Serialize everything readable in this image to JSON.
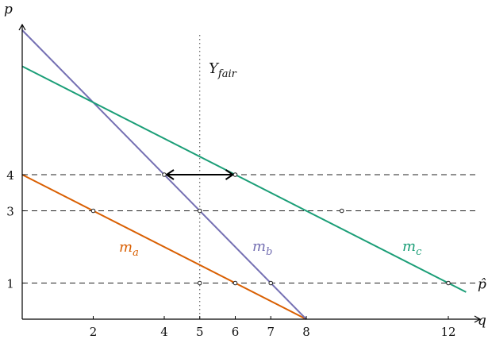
{
  "chart_data": {
    "type": "line",
    "title": "",
    "xlabel": "q",
    "ylabel": "p",
    "xlim": [
      0,
      13
    ],
    "ylim": [
      0,
      8.2
    ],
    "grid": false,
    "x_ticks": [
      2,
      4,
      5,
      6,
      7,
      8,
      12
    ],
    "y_ticks": [
      1,
      3,
      4
    ],
    "series": [
      {
        "name": "m_a",
        "label_main": "m",
        "label_sub": "a",
        "color": "#d95f02",
        "points": [
          [
            0,
            4
          ],
          [
            8,
            0
          ]
        ]
      },
      {
        "name": "m_b",
        "label_main": "m",
        "label_sub": "b",
        "color": "#7570b3",
        "points": [
          [
            0,
            8
          ],
          [
            8,
            0
          ]
        ]
      },
      {
        "name": "m_c",
        "label_main": "m",
        "label_sub": "c",
        "color": "#1b9e77",
        "points": [
          [
            0,
            7
          ],
          [
            12.5,
            0.75
          ]
        ]
      }
    ],
    "hlines": [
      {
        "y": 4,
        "label": ""
      },
      {
        "y": 3,
        "label": ""
      },
      {
        "y": 1,
        "label": "p̂"
      }
    ],
    "vline": {
      "x": 5,
      "label_main": "Y",
      "label_sub": "fair"
    },
    "markers": [
      [
        2,
        3
      ],
      [
        5,
        3
      ],
      [
        9,
        3
      ],
      [
        4,
        4
      ],
      [
        6,
        4
      ],
      [
        5,
        1
      ],
      [
        6,
        1
      ],
      [
        7,
        1
      ],
      [
        12,
        1
      ]
    ],
    "arrow": {
      "from": [
        4,
        4
      ],
      "to": [
        6,
        4
      ]
    }
  }
}
